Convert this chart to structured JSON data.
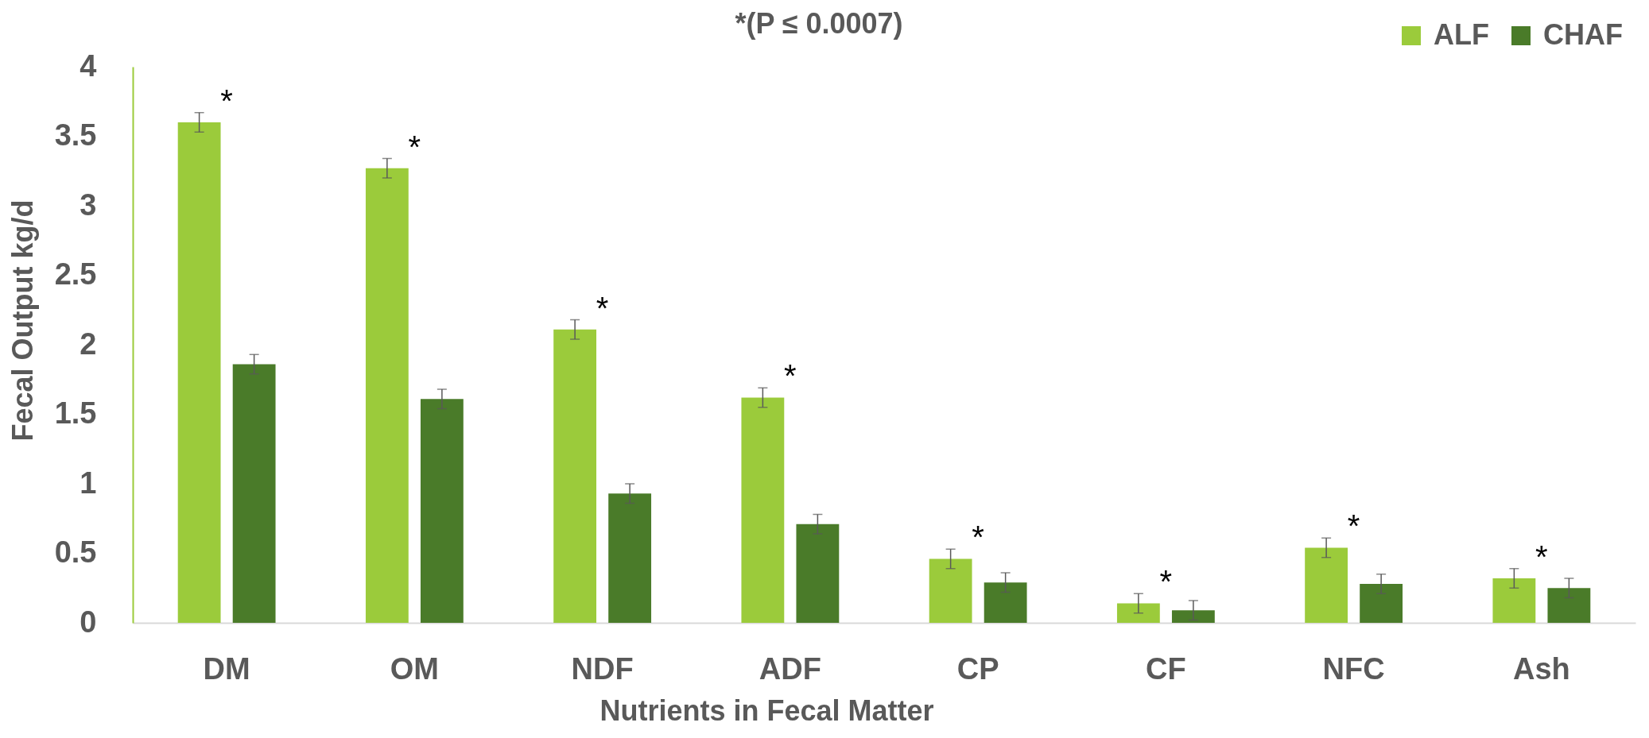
{
  "chart_data": {
    "type": "bar",
    "title": "*(P ≤ 0.0007)",
    "xlabel": "Nutrients in Fecal Matter",
    "ylabel": "Fecal Output kg/d",
    "categories": [
      "DM",
      "OM",
      "NDF",
      "ADF",
      "CP",
      "CF",
      "NFC",
      "Ash"
    ],
    "series": [
      {
        "name": "ALF",
        "color": "#9bcb3b",
        "values": [
          3.6,
          3.27,
          2.11,
          1.62,
          0.46,
          0.14,
          0.54,
          0.32
        ],
        "errors": [
          0.07,
          0.07,
          0.07,
          0.07,
          0.07,
          0.07,
          0.07,
          0.07
        ]
      },
      {
        "name": "CHAF",
        "color": "#4a7b29",
        "values": [
          1.86,
          1.61,
          0.93,
          0.71,
          0.29,
          0.09,
          0.28,
          0.25
        ],
        "errors": [
          0.07,
          0.07,
          0.07,
          0.07,
          0.07,
          0.07,
          0.07,
          0.07
        ]
      }
    ],
    "ylim": [
      0,
      4
    ],
    "yticks": [
      0,
      0.5,
      1,
      1.5,
      2,
      2.5,
      3,
      3.5,
      4
    ],
    "grid": false,
    "legend": "top right",
    "annotations": [
      "*",
      "*",
      "*",
      "*",
      "*",
      "*",
      "*",
      "*"
    ]
  }
}
